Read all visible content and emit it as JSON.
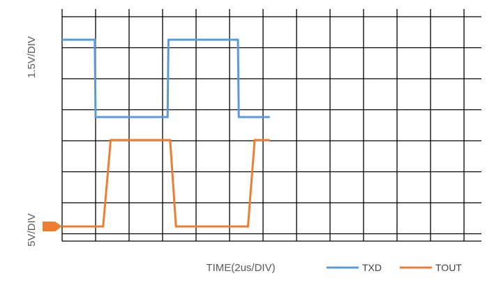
{
  "chart_data": {
    "type": "line",
    "xlabel": "TIME(2us/DIV)",
    "y_labels": [
      "1.5V/DIV",
      "5V/DIV"
    ],
    "x_unit": "us",
    "us_per_div": 2,
    "grid": true,
    "legend_position": "bottom-right",
    "series": [
      {
        "name": "TXD",
        "color": "#5B9BD5",
        "points": [
          [
            0,
            1
          ],
          [
            1.95,
            1
          ],
          [
            2.0,
            0
          ],
          [
            6.3,
            0
          ],
          [
            6.35,
            1
          ],
          [
            10.5,
            1
          ],
          [
            10.55,
            0
          ],
          [
            12.4,
            0
          ]
        ]
      },
      {
        "name": "TOUT",
        "color": "#ED7D31",
        "points": [
          [
            0,
            0
          ],
          [
            2.45,
            0
          ],
          [
            2.9,
            1
          ],
          [
            6.45,
            1
          ],
          [
            6.8,
            0
          ],
          [
            11.1,
            0
          ],
          [
            11.5,
            1
          ],
          [
            12.4,
            1
          ]
        ]
      }
    ],
    "ground_marker_color": "#ED7D31"
  }
}
